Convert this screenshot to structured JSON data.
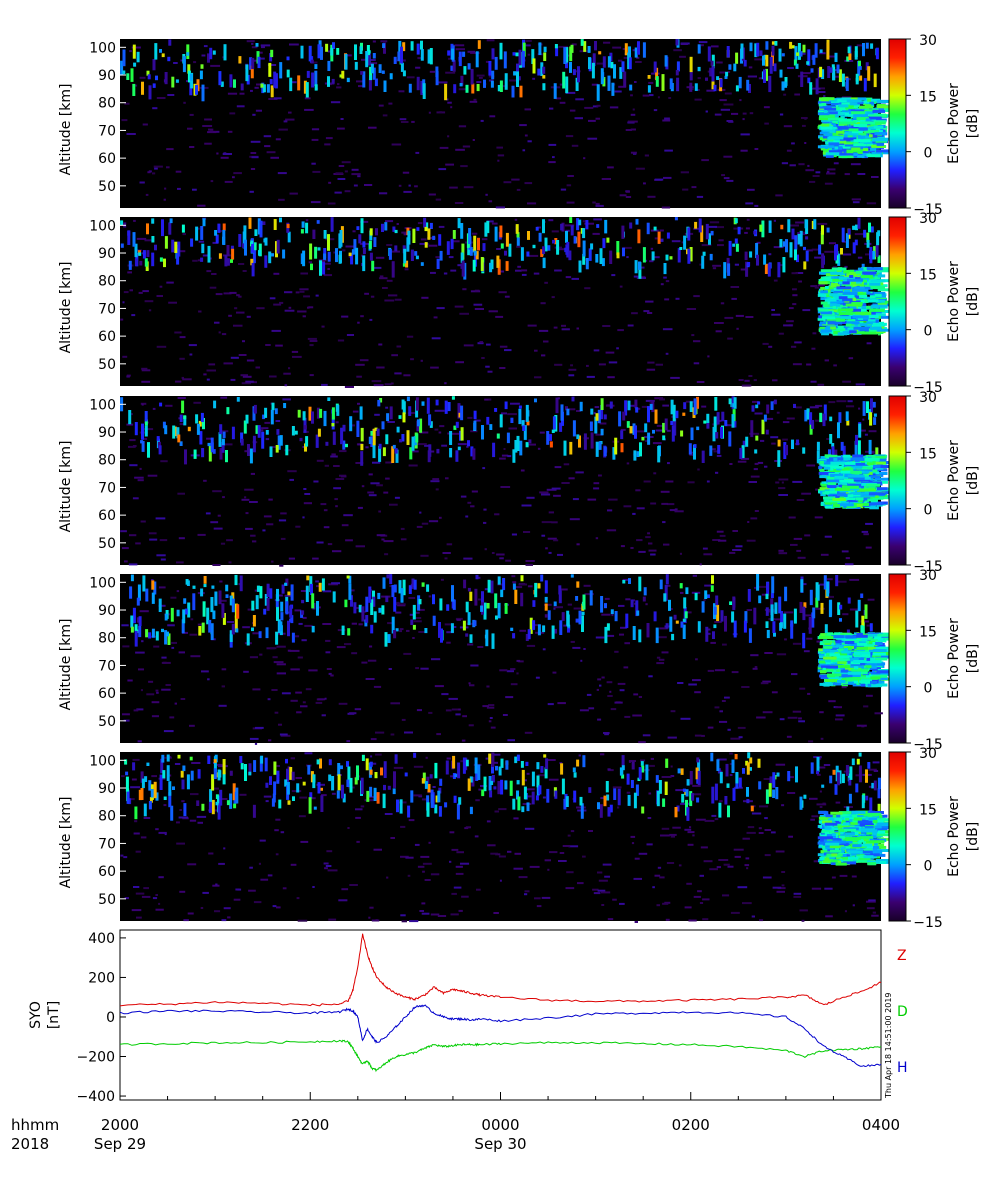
{
  "chart_data": [
    {
      "type": "heatmap",
      "ylabel": "Altitude [km]",
      "ylim": [
        42,
        103
      ],
      "yticks": [
        "50",
        "60",
        "70",
        "80",
        "90",
        "100"
      ],
      "colorbar": {
        "label": "Echo Power",
        "unit": "[dB]",
        "ticks": [
          "30",
          "15",
          "0",
          "−15"
        ],
        "range": [
          -15,
          30
        ]
      },
      "echo_layers": [
        {
          "x_range": [
            "2000",
            "0400"
          ],
          "altitude_km": [
            85,
            103
          ],
          "description": "sporadic echoes"
        },
        {
          "x_range": [
            "0320",
            "0400"
          ],
          "altitude_km": [
            60,
            82
          ],
          "description": "strong echo region"
        }
      ]
    },
    {
      "type": "heatmap",
      "ylabel": "Altitude [km]",
      "ylim": [
        42,
        103
      ],
      "yticks": [
        "50",
        "60",
        "70",
        "80",
        "90",
        "100"
      ],
      "colorbar": {
        "label": "Echo Power",
        "unit": "[dB]",
        "ticks": [
          "30",
          "15",
          "0",
          "−15"
        ],
        "range": [
          -15,
          30
        ]
      },
      "echo_layers": [
        {
          "x_range": [
            "2000",
            "0400"
          ],
          "altitude_km": [
            85,
            103
          ],
          "description": "sporadic echoes"
        },
        {
          "x_range": [
            "0320",
            "0400"
          ],
          "altitude_km": [
            60,
            85
          ],
          "description": "strong echo region"
        }
      ]
    },
    {
      "type": "heatmap",
      "ylabel": "Altitude [km]",
      "ylim": [
        42,
        103
      ],
      "yticks": [
        "50",
        "60",
        "70",
        "80",
        "90",
        "100"
      ],
      "colorbar": {
        "label": "Echo Power",
        "unit": "[dB]",
        "ticks": [
          "30",
          "15",
          "0",
          "−15"
        ],
        "range": [
          -15,
          30
        ]
      },
      "echo_layers": [
        {
          "x_range": [
            "2000",
            "0400"
          ],
          "altitude_km": [
            82,
            103
          ],
          "description": "sporadic echoes"
        },
        {
          "x_range": [
            "0320",
            "0400"
          ],
          "altitude_km": [
            62,
            82
          ],
          "description": "strong echo region"
        }
      ]
    },
    {
      "type": "heatmap",
      "ylabel": "Altitude [km]",
      "ylim": [
        42,
        103
      ],
      "yticks": [
        "50",
        "60",
        "70",
        "80",
        "90",
        "100"
      ],
      "colorbar": {
        "label": "Echo Power",
        "unit": "[dB]",
        "ticks": [
          "30",
          "15",
          "0",
          "−15"
        ],
        "range": [
          -15,
          30
        ]
      },
      "echo_layers": [
        {
          "x_range": [
            "2000",
            "0400"
          ],
          "altitude_km": [
            80,
            103
          ],
          "description": "sporadic echoes"
        },
        {
          "x_range": [
            "0320",
            "0400"
          ],
          "altitude_km": [
            62,
            82
          ],
          "description": "strong echo region"
        }
      ]
    },
    {
      "type": "heatmap",
      "ylabel": "Altitude [km]",
      "ylim": [
        42,
        103
      ],
      "yticks": [
        "50",
        "60",
        "70",
        "80",
        "90",
        "100"
      ],
      "colorbar": {
        "label": "Echo Power",
        "unit": "[dB]",
        "ticks": [
          "30",
          "15",
          "0",
          "−15"
        ],
        "range": [
          -15,
          30
        ]
      },
      "echo_layers": [
        {
          "x_range": [
            "2000",
            "0400"
          ],
          "altitude_km": [
            82,
            103
          ],
          "description": "sporadic echoes"
        },
        {
          "x_range": [
            "0320",
            "0400"
          ],
          "altitude_km": [
            62,
            82
          ],
          "description": "strong echo region"
        }
      ]
    },
    {
      "type": "line",
      "ylabel_top": "SYO",
      "ylabel_bottom": "[nT]",
      "ylim": [
        -420,
        440
      ],
      "yticks": [
        -400,
        -200,
        0,
        200,
        400
      ],
      "x_hours": [
        0,
        0.5,
        1.0,
        1.5,
        2.0,
        2.3,
        2.4,
        2.45,
        2.5,
        2.55,
        2.6,
        2.65,
        2.7,
        2.8,
        2.9,
        3.0,
        3.1,
        3.2,
        3.3,
        3.4,
        3.5,
        3.6,
        3.7,
        3.8,
        4.0,
        4.5,
        5.0,
        5.5,
        6.0,
        6.5,
        7.0,
        7.2,
        7.4,
        7.6,
        7.8,
        8.0
      ],
      "series": [
        {
          "name": "Z",
          "color": "#dd0000",
          "values": [
            60,
            65,
            75,
            70,
            60,
            65,
            80,
            140,
            250,
            420,
            320,
            250,
            200,
            150,
            120,
            100,
            90,
            110,
            150,
            120,
            140,
            130,
            120,
            110,
            100,
            85,
            80,
            80,
            85,
            90,
            100,
            110,
            60,
            100,
            130,
            175
          ]
        },
        {
          "name": "D",
          "color": "#00cc00",
          "values": [
            -140,
            -135,
            -130,
            -130,
            -125,
            -120,
            -125,
            -160,
            -200,
            -240,
            -220,
            -260,
            -270,
            -230,
            -200,
            -190,
            -180,
            -160,
            -140,
            -150,
            -145,
            -140,
            -140,
            -140,
            -135,
            -130,
            -130,
            -135,
            -140,
            -150,
            -170,
            -200,
            -170,
            -165,
            -160,
            -150
          ]
        },
        {
          "name": "H",
          "color": "#0000cc",
          "values": [
            20,
            30,
            30,
            25,
            20,
            25,
            40,
            30,
            0,
            -120,
            -60,
            -100,
            -130,
            -100,
            -50,
            0,
            50,
            60,
            20,
            0,
            -10,
            -10,
            -15,
            -10,
            -20,
            -5,
            15,
            20,
            25,
            20,
            0,
            -60,
            -150,
            -200,
            -250,
            -240
          ]
        }
      ]
    }
  ],
  "xaxis": {
    "row1_label": "hhmm",
    "row2_label": "2018",
    "ticks": [
      "2000",
      "2200",
      "0000",
      "0200",
      "0400"
    ],
    "tick_hours": [
      0,
      2,
      4,
      6,
      8
    ],
    "dates": [
      {
        "label": "Sep 29",
        "hour": 0
      },
      {
        "label": "Sep 30",
        "hour": 4
      }
    ],
    "minor_hours": [
      0.5,
      1,
      1.5,
      2.5,
      3,
      3.5,
      4.5,
      5,
      5.5,
      6.5,
      7,
      7.5
    ]
  },
  "timestamp": "Thu Apr 18 14:51:00 2019",
  "colors": {
    "plot_bg": "#000000",
    "colormap": [
      "#180028",
      "#3a0070",
      "#2020ff",
      "#00a0ff",
      "#00ffd0",
      "#20ff40",
      "#d0ff00",
      "#ffa000",
      "#ff2000",
      "#e00000"
    ]
  }
}
